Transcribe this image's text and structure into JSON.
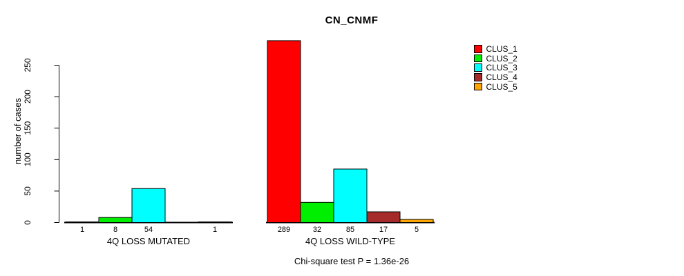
{
  "chart_data": {
    "type": "bar",
    "title": "CN_CNMF",
    "xlabel": "",
    "ylabel": "number of cases",
    "categories": [
      "4Q LOSS MUTATED",
      "4Q LOSS WILD-TYPE"
    ],
    "series": [
      {
        "name": "CLUS_1",
        "color": "#FF0000",
        "values": [
          1,
          289
        ]
      },
      {
        "name": "CLUS_2",
        "color": "#00EE00",
        "values": [
          8,
          32
        ]
      },
      {
        "name": "CLUS_3",
        "color": "#00FFFF",
        "values": [
          54,
          85
        ]
      },
      {
        "name": "CLUS_4",
        "color": "#A52A2A",
        "values": [
          0,
          17
        ]
      },
      {
        "name": "CLUS_5",
        "color": "#FFA500",
        "values": [
          1,
          5
        ]
      }
    ],
    "y_ticks": [
      0,
      50,
      100,
      150,
      200,
      250
    ],
    "ylim": [
      0,
      250
    ],
    "grid": false,
    "legend_position": "right",
    "bar_value_labels": true,
    "hide_zero_value_labels": true,
    "annotation": "Chi-square test P = 1.36e-26"
  }
}
